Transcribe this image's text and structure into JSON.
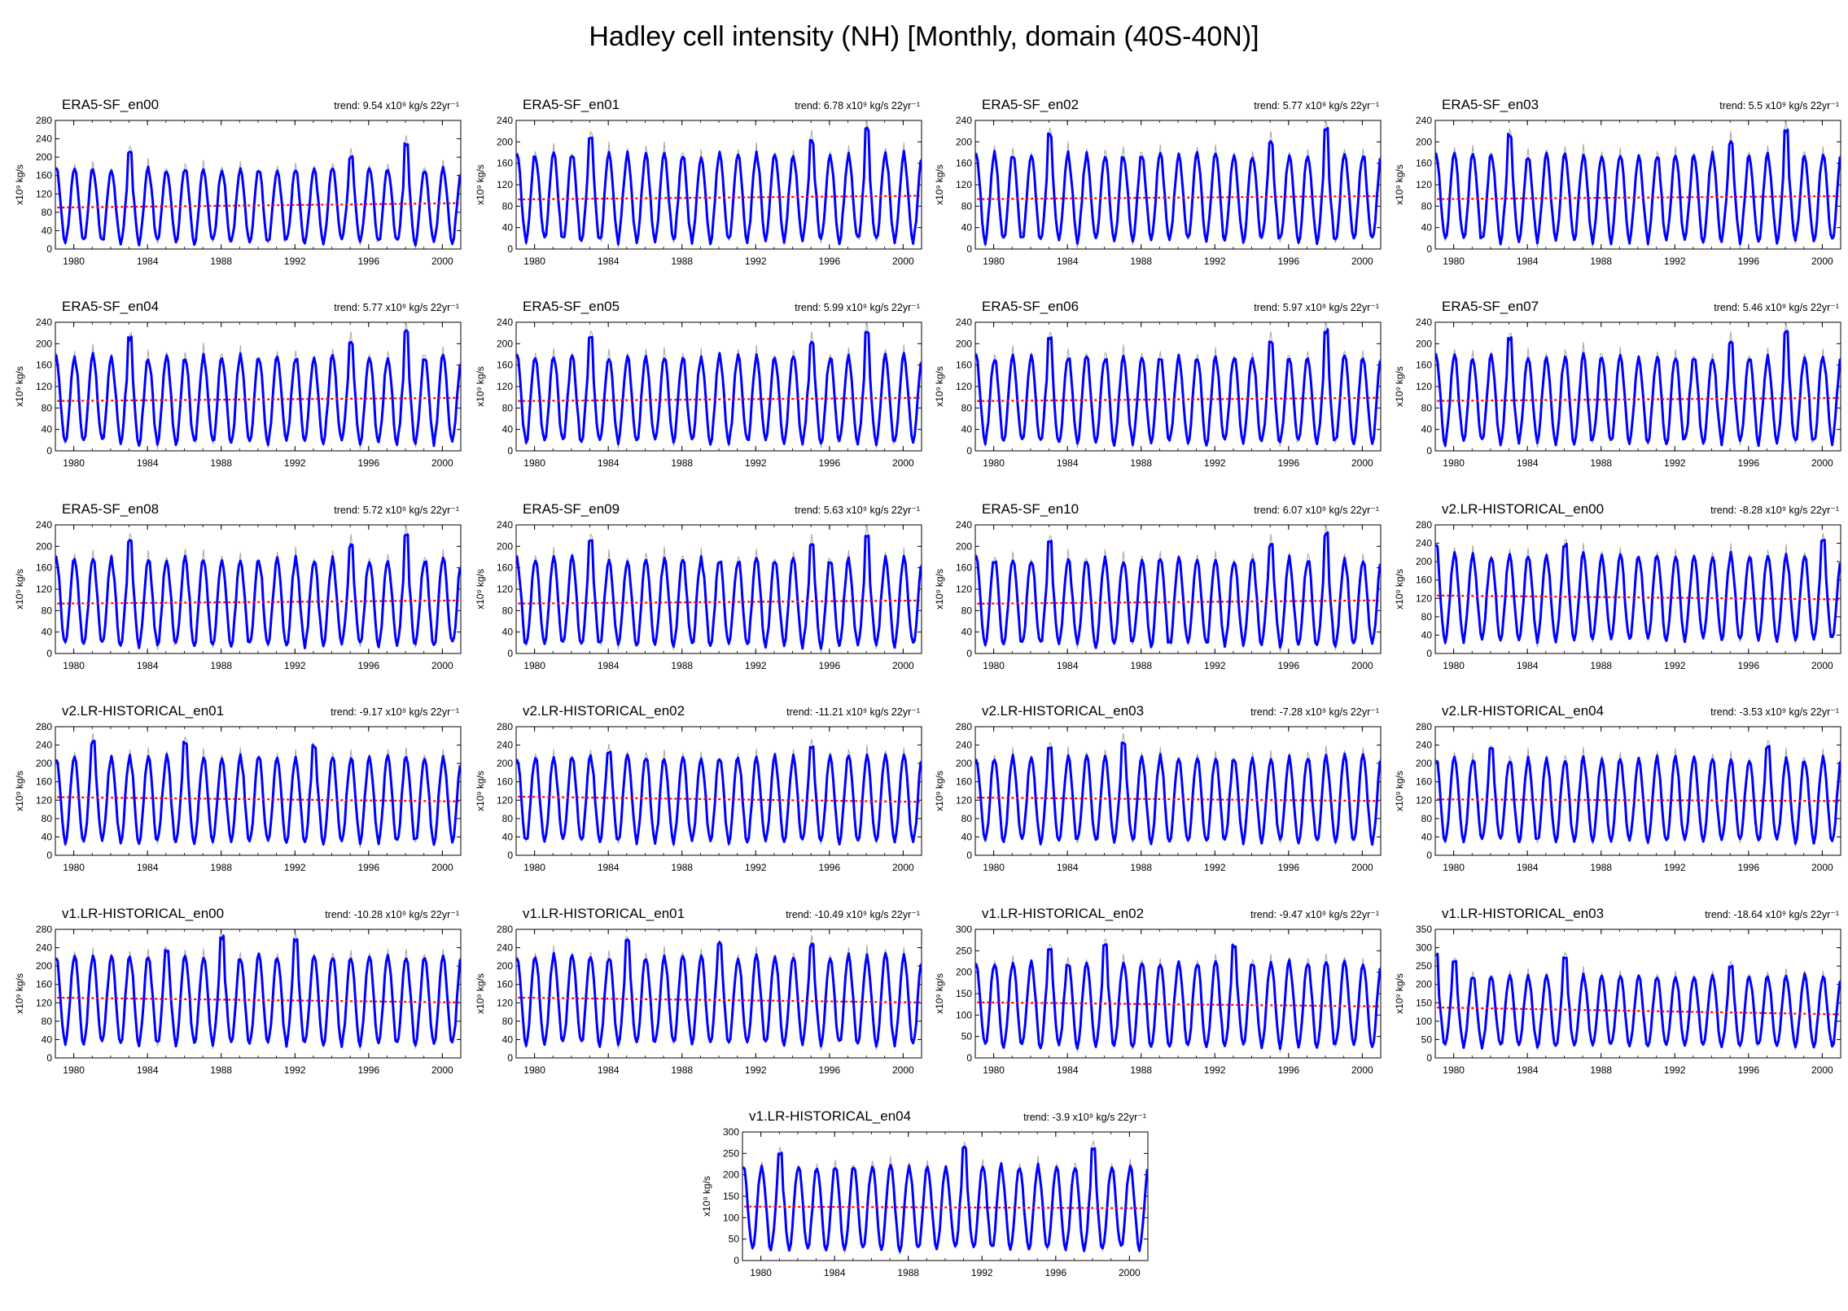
{
  "figure": {
    "title": "Hadley cell intensity (NH) [Monthly, domain (40S-40N)]"
  },
  "chart_data": {
    "type": "line",
    "x_range": [
      1979.0,
      2001.0
    ],
    "x_ticks": [
      1980,
      1984,
      1988,
      1992,
      1996,
      2000
    ],
    "x_tick_labels": [
      "1980",
      "1984",
      "1988",
      "1992",
      "1996",
      "2000"
    ],
    "ylabel": "x10⁹ kg/s",
    "trend_prefix": "trend: ",
    "trend_unit": " x10⁹ kg/s 22yr⁻¹",
    "grid": false,
    "colors": {
      "series": "#0000ff",
      "raw": "#a6a6a6",
      "trend": "#ff0000"
    },
    "panels": [
      {
        "title": "ERA5-SF_en00",
        "trend": "9.54",
        "ylim": [
          0,
          280
        ],
        "yticks": [
          0,
          40,
          80,
          120,
          160,
          200,
          240,
          280
        ],
        "mean": 95,
        "amp": 80,
        "trend_slope": 9.54,
        "peaks": [
          [
            1983.0,
            212
          ],
          [
            1998.0,
            228
          ],
          [
            1995.0,
            198
          ]
        ]
      },
      {
        "title": "ERA5-SF_en01",
        "trend": "6.78",
        "ylim": [
          0,
          240
        ],
        "yticks": [
          0,
          40,
          80,
          120,
          160,
          200,
          240
        ],
        "mean": 96,
        "amp": 80,
        "trend_slope": 6.78,
        "peaks": [
          [
            1983.0,
            210
          ],
          [
            1998.0,
            223
          ],
          [
            1995.0,
            200
          ]
        ]
      },
      {
        "title": "ERA5-SF_en02",
        "trend": "5.77",
        "ylim": [
          0,
          240
        ],
        "yticks": [
          0,
          40,
          80,
          120,
          160,
          200,
          240
        ],
        "mean": 96,
        "amp": 80,
        "trend_slope": 5.77,
        "peaks": [
          [
            1983.0,
            212
          ],
          [
            1998.0,
            222
          ],
          [
            1995.0,
            198
          ]
        ]
      },
      {
        "title": "ERA5-SF_en03",
        "trend": "5.5",
        "ylim": [
          0,
          240
        ],
        "yticks": [
          0,
          40,
          80,
          120,
          160,
          200,
          240
        ],
        "mean": 96,
        "amp": 80,
        "trend_slope": 5.5,
        "peaks": [
          [
            1983.0,
            212
          ],
          [
            1998.0,
            221
          ],
          [
            1995.0,
            198
          ]
        ]
      },
      {
        "title": "ERA5-SF_en04",
        "trend": "5.77",
        "ylim": [
          0,
          240
        ],
        "yticks": [
          0,
          40,
          80,
          120,
          160,
          200,
          240
        ],
        "mean": 96,
        "amp": 80,
        "trend_slope": 5.77,
        "peaks": [
          [
            1983.0,
            210
          ],
          [
            1998.0,
            222
          ],
          [
            1995.0,
            200
          ]
        ]
      },
      {
        "title": "ERA5-SF_en05",
        "trend": "5.99",
        "ylim": [
          0,
          240
        ],
        "yticks": [
          0,
          40,
          80,
          120,
          160,
          200,
          240
        ],
        "mean": 96,
        "amp": 80,
        "trend_slope": 5.99,
        "peaks": [
          [
            1983.0,
            210
          ],
          [
            1998.0,
            222
          ],
          [
            1995.0,
            200
          ]
        ]
      },
      {
        "title": "ERA5-SF_en06",
        "trend": "5.97",
        "ylim": [
          0,
          240
        ],
        "yticks": [
          0,
          40,
          80,
          120,
          160,
          200,
          240
        ],
        "mean": 96,
        "amp": 80,
        "trend_slope": 5.97,
        "peaks": [
          [
            1983.0,
            210
          ],
          [
            1998.0,
            223
          ],
          [
            1995.0,
            200
          ]
        ]
      },
      {
        "title": "ERA5-SF_en07",
        "trend": "5.46",
        "ylim": [
          0,
          240
        ],
        "yticks": [
          0,
          40,
          80,
          120,
          160,
          200,
          240
        ],
        "mean": 96,
        "amp": 80,
        "trend_slope": 5.46,
        "peaks": [
          [
            1983.0,
            211
          ],
          [
            1998.0,
            221
          ],
          [
            1995.0,
            200
          ]
        ]
      },
      {
        "title": "ERA5-SF_en08",
        "trend": "5.72",
        "ylim": [
          0,
          240
        ],
        "yticks": [
          0,
          40,
          80,
          120,
          160,
          200,
          240
        ],
        "mean": 96,
        "amp": 80,
        "trend_slope": 5.72,
        "peaks": [
          [
            1983.0,
            210
          ],
          [
            1998.0,
            222
          ],
          [
            1995.0,
            200
          ]
        ]
      },
      {
        "title": "ERA5-SF_en09",
        "trend": "5.63",
        "ylim": [
          0,
          240
        ],
        "yticks": [
          0,
          40,
          80,
          120,
          160,
          200,
          240
        ],
        "mean": 96,
        "amp": 80,
        "trend_slope": 5.63,
        "peaks": [
          [
            1983.0,
            212
          ],
          [
            1998.0,
            222
          ],
          [
            1995.0,
            200
          ]
        ]
      },
      {
        "title": "ERA5-SF_en10",
        "trend": "6.07",
        "ylim": [
          0,
          240
        ],
        "yticks": [
          0,
          40,
          80,
          120,
          160,
          200,
          240
        ],
        "mean": 96,
        "amp": 80,
        "trend_slope": 6.07,
        "peaks": [
          [
            1983.0,
            212
          ],
          [
            1998.0,
            222
          ],
          [
            1995.0,
            200
          ]
        ]
      },
      {
        "title": "v2.LR-HISTORICAL_en00",
        "trend": "-8.28",
        "ylim": [
          0,
          280
        ],
        "yticks": [
          0,
          40,
          80,
          120,
          160,
          200,
          240,
          280
        ],
        "mean": 122,
        "amp": 92,
        "trend_slope": -8.28,
        "peaks": [
          [
            1979.2,
            235
          ],
          [
            2000.2,
            248
          ],
          [
            1986.0,
            236
          ]
        ]
      },
      {
        "title": "v2.LR-HISTORICAL_en01",
        "trend": "-9.17",
        "ylim": [
          0,
          280
        ],
        "yticks": [
          0,
          40,
          80,
          120,
          160,
          200,
          240,
          280
        ],
        "mean": 122,
        "amp": 92,
        "trend_slope": -9.17,
        "peaks": [
          [
            1981.0,
            245
          ],
          [
            1986.0,
            245
          ],
          [
            1993.0,
            238
          ]
        ]
      },
      {
        "title": "v2.LR-HISTORICAL_en02",
        "trend": "-11.21",
        "ylim": [
          0,
          280
        ],
        "yticks": [
          0,
          40,
          80,
          120,
          160,
          200,
          240,
          280
        ],
        "mean": 122,
        "amp": 92,
        "trend_slope": -11.21,
        "peaks": [
          [
            1995.0,
            238
          ],
          [
            1984.0,
            226
          ]
        ]
      },
      {
        "title": "v2.LR-HISTORICAL_en03",
        "trend": "-7.28",
        "ylim": [
          0,
          280
        ],
        "yticks": [
          0,
          40,
          80,
          120,
          160,
          200,
          240,
          280
        ],
        "mean": 122,
        "amp": 92,
        "trend_slope": -7.28,
        "peaks": [
          [
            1987.0,
            245
          ],
          [
            1983.0,
            232
          ]
        ]
      },
      {
        "title": "v2.LR-HISTORICAL_en04",
        "trend": "-3.53",
        "ylim": [
          0,
          280
        ],
        "yticks": [
          0,
          40,
          80,
          120,
          160,
          200,
          240,
          280
        ],
        "mean": 120,
        "amp": 90,
        "trend_slope": -3.53,
        "peaks": [
          [
            1997.0,
            235
          ],
          [
            1982.0,
            232
          ]
        ]
      },
      {
        "title": "v1.LR-HISTORICAL_en00",
        "trend": "-10.28",
        "ylim": [
          0,
          280
        ],
        "yticks": [
          0,
          40,
          80,
          120,
          160,
          200,
          240,
          280
        ],
        "mean": 126,
        "amp": 95,
        "trend_slope": -10.28,
        "peaks": [
          [
            1988.0,
            262
          ],
          [
            1992.0,
            255
          ],
          [
            1985.0,
            235
          ]
        ]
      },
      {
        "title": "v1.LR-HISTORICAL_en01",
        "trend": "-10.49",
        "ylim": [
          0,
          280
        ],
        "yticks": [
          0,
          40,
          80,
          120,
          160,
          200,
          240,
          280
        ],
        "mean": 126,
        "amp": 95,
        "trend_slope": -10.49,
        "peaks": [
          [
            1985.0,
            255
          ],
          [
            1990.0,
            250
          ],
          [
            1995.0,
            245
          ]
        ]
      },
      {
        "title": "v1.LR-HISTORICAL_en02",
        "trend": "-9.47",
        "ylim": [
          0,
          300
        ],
        "yticks": [
          0,
          50,
          100,
          150,
          200,
          250,
          300
        ],
        "mean": 125,
        "amp": 98,
        "trend_slope": -9.47,
        "peaks": [
          [
            1986.0,
            262
          ],
          [
            1993.0,
            262
          ],
          [
            1983.0,
            255
          ]
        ]
      },
      {
        "title": "v1.LR-HISTORICAL_en03",
        "trend": "-18.64",
        "ylim": [
          0,
          350
        ],
        "yticks": [
          0,
          50,
          100,
          150,
          200,
          250,
          300,
          350
        ],
        "mean": 128,
        "amp": 95,
        "trend_slope": -18.64,
        "peaks": [
          [
            1979.2,
            280
          ],
          [
            1980.0,
            265
          ],
          [
            1986.0,
            275
          ],
          [
            1995.0,
            250
          ]
        ]
      },
      {
        "title": "v1.LR-HISTORICAL_en04",
        "trend": "-3.9",
        "ylim": [
          0,
          300
        ],
        "yticks": [
          0,
          50,
          100,
          150,
          200,
          250,
          300
        ],
        "mean": 124,
        "amp": 96,
        "trend_slope": -3.9,
        "peaks": [
          [
            1991.0,
            262
          ],
          [
            1998.0,
            262
          ],
          [
            1981.0,
            252
          ]
        ]
      }
    ]
  }
}
